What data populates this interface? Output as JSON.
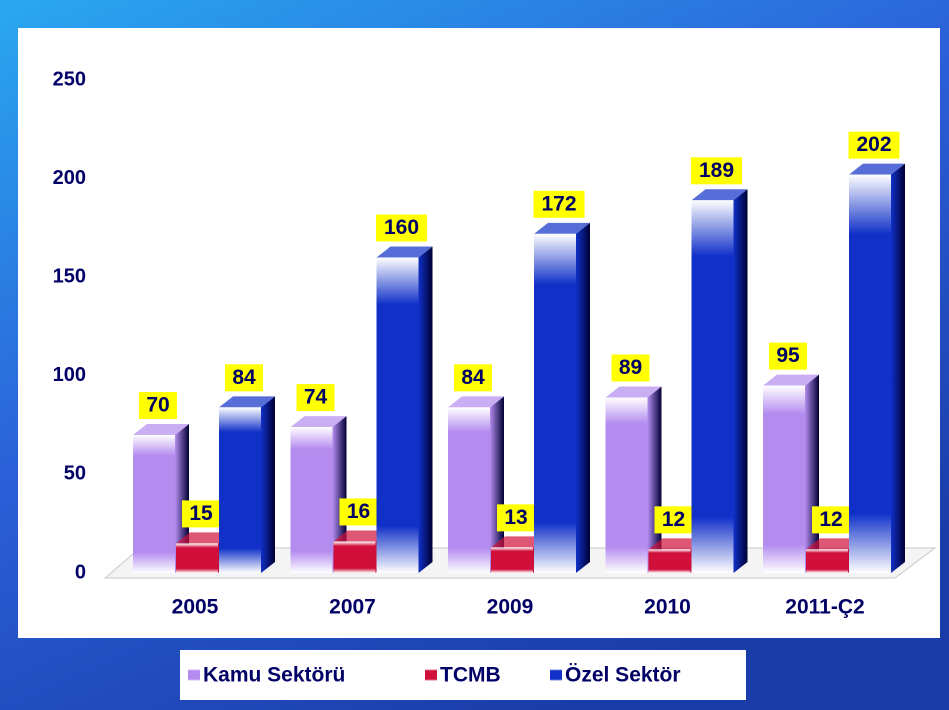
{
  "chart_data": {
    "type": "bar3d",
    "categories": [
      "2005",
      "2007",
      "2009",
      "2010",
      "2011-Ç2"
    ],
    "series": [
      {
        "name": "Kamu Sektörü",
        "color": "#b48cf0",
        "values": [
          70,
          74,
          84,
          89,
          95
        ]
      },
      {
        "name": "TCMB",
        "color": "#d0103a",
        "values": [
          15,
          16,
          13,
          12,
          12
        ]
      },
      {
        "name": "Özel Sektör",
        "color": "#1030c8",
        "values": [
          84,
          160,
          172,
          189,
          202
        ]
      }
    ],
    "ylim": [
      0,
      250
    ],
    "yticks": [
      0,
      50,
      100,
      150,
      200,
      250
    ],
    "grid": false,
    "legend": "bottom"
  }
}
